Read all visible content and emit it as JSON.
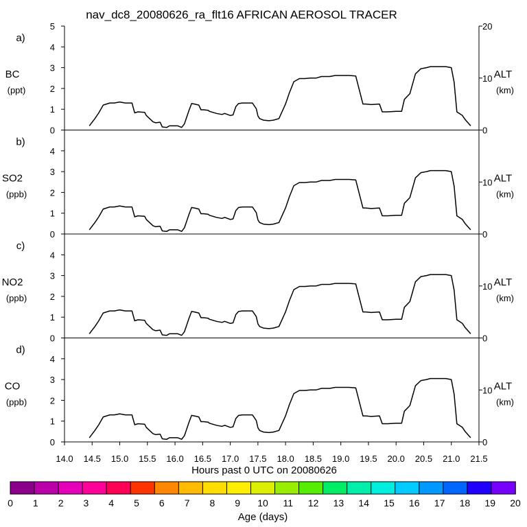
{
  "chart_data": {
    "type": "line",
    "title": "nav_dc8_20080626_ra_flt16 AFRICAN AEROSOL TRACER",
    "xlabel": "Hours past 0 UTC on 20080626",
    "xlim": [
      14.0,
      21.5
    ],
    "x_ticks": [
      "14.0",
      "14.5",
      "15.0",
      "15.5",
      "16.0",
      "16.5",
      "17.0",
      "17.5",
      "18.0",
      "18.5",
      "19.0",
      "19.5",
      "20.0",
      "20.5",
      "21.0",
      "21.5"
    ],
    "left_ylim": [
      0,
      5
    ],
    "left_ticks": [
      "0",
      "1",
      "2",
      "3",
      "4",
      "5"
    ],
    "right_ylim": [
      0,
      20
    ],
    "right_ticks": [
      "0",
      "10",
      "20"
    ],
    "right_label": "ALT",
    "right_unit": "(km)",
    "panels": [
      {
        "letter": "a)",
        "species": "BC",
        "unit": "(ppt)",
        "show_top_tick": true
      },
      {
        "letter": "b)",
        "species": "SO2",
        "unit": "(ppb)",
        "show_top_tick": false
      },
      {
        "letter": "c)",
        "species": "NO2",
        "unit": "(ppb)",
        "show_top_tick": false
      },
      {
        "letter": "d)",
        "species": "CO",
        "unit": "(ppb)",
        "show_top_tick": false
      }
    ],
    "series": [
      {
        "name": "ALT (km)",
        "axis": "right",
        "x": [
          14.45,
          14.55,
          14.62,
          14.7,
          14.82,
          14.9,
          15.0,
          15.1,
          15.22,
          15.27,
          15.33,
          15.45,
          15.48,
          15.6,
          15.65,
          15.73,
          15.77,
          15.85,
          15.9,
          15.95,
          16.05,
          16.12,
          16.17,
          16.25,
          16.3,
          16.35,
          16.43,
          16.47,
          16.52,
          16.6,
          16.62,
          16.75,
          16.85,
          16.9,
          17.0,
          17.05,
          17.1,
          17.15,
          17.22,
          17.3,
          17.4,
          17.47,
          17.5,
          17.53,
          17.6,
          17.7,
          17.78,
          17.88,
          18.0,
          18.07,
          18.15,
          18.25,
          18.35,
          18.45,
          18.55,
          18.65,
          18.72,
          18.8,
          18.9,
          19.0,
          19.08,
          19.15,
          19.27,
          19.4,
          19.45,
          19.55,
          19.7,
          19.75,
          19.85,
          20.0,
          20.1,
          20.15,
          20.25,
          20.35,
          20.45,
          20.55,
          20.62,
          20.7,
          20.8,
          20.9,
          21.0,
          21.05,
          21.1,
          21.2,
          21.25,
          21.35
        ],
        "y": [
          0.8,
          2.2,
          3.3,
          4.8,
          5.2,
          5.2,
          5.4,
          5.2,
          5.2,
          3.3,
          3.5,
          3.4,
          2.8,
          1.6,
          1.4,
          1.5,
          0.6,
          0.5,
          0.8,
          0.8,
          0.8,
          0.5,
          1.2,
          3.7,
          5.1,
          5.0,
          4.8,
          3.9,
          3.9,
          3.8,
          3.6,
          3.2,
          3.0,
          3.2,
          2.8,
          2.9,
          4.5,
          5.1,
          5.2,
          5.2,
          5.2,
          4.1,
          2.7,
          2.2,
          1.9,
          1.8,
          1.9,
          2.2,
          5.0,
          7.2,
          9.3,
          9.9,
          9.9,
          10.0,
          10.0,
          10.3,
          10.3,
          10.3,
          10.5,
          10.5,
          10.5,
          10.5,
          10.4,
          5.0,
          5.0,
          4.9,
          5.0,
          3.5,
          3.5,
          3.6,
          3.6,
          5.9,
          7.0,
          10.8,
          11.8,
          12.0,
          12.2,
          12.2,
          12.2,
          12.2,
          12.0,
          9.2,
          3.5,
          2.8,
          2.0,
          0.8
        ]
      }
    ]
  },
  "colorbar": {
    "label": "Age (days)",
    "min": 0,
    "max": 20,
    "tick_labels": [
      "0",
      "1",
      "2",
      "3",
      "4",
      "5",
      "6",
      "7",
      "8",
      "9",
      "10",
      "11",
      "12",
      "13",
      "14",
      "15",
      "16",
      "17",
      "18",
      "19",
      "20"
    ],
    "colors": [
      "#8b008b",
      "#bb00aa",
      "#e600b9",
      "#ff0099",
      "#ff0055",
      "#ff3300",
      "#ff8800",
      "#ffbb00",
      "#ffdd00",
      "#ffee00",
      "#ddee00",
      "#99ee00",
      "#55ee00",
      "#00ee66",
      "#00eeaa",
      "#00eedd",
      "#00ccff",
      "#0099ff",
      "#0066ff",
      "#2200ff",
      "#7700ff"
    ]
  }
}
